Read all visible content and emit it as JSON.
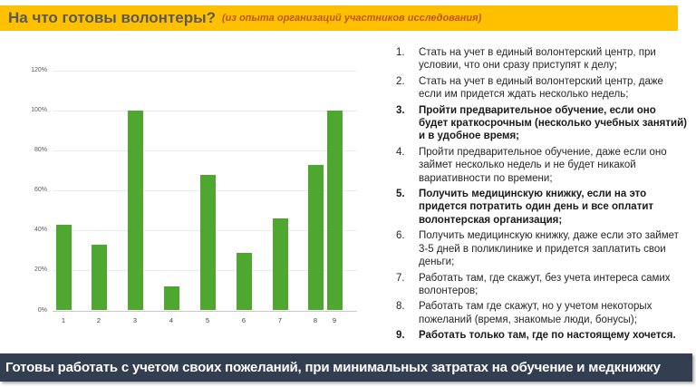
{
  "header": {
    "title": "На что готовы волонтеры?",
    "subtitle": "(из опыта организаций участников исследования)"
  },
  "chart_data": {
    "type": "bar",
    "title": "",
    "xlabel": "",
    "ylabel": "",
    "categories": [
      "1",
      "2",
      "3",
      "4",
      "5",
      "6",
      "7",
      "8",
      "9"
    ],
    "values": [
      43,
      33,
      100,
      12,
      68,
      29,
      46,
      73,
      100
    ],
    "ylim": [
      0,
      120
    ],
    "ytick_step": 20,
    "ytick_labels": [
      "0%",
      "20%",
      "40%",
      "60%",
      "80%",
      "100%",
      "120%"
    ],
    "grid": true,
    "legend": false,
    "bar_color": "#4EA72E"
  },
  "list": {
    "items": [
      {
        "num": "1.",
        "text": "Стать на учет в единый волонтерский центр, при условии, что они сразу приступят к делу;",
        "bold": false
      },
      {
        "num": "2.",
        "text": "Стать на учет в единый волонтерский центр, даже если им придется ждать несколько недель;",
        "bold": false
      },
      {
        "num": "3.",
        "text": "Пройти предварительное обучение, если оно будет краткосрочным (несколько учебных занятий) и в удобное время;",
        "bold": true
      },
      {
        "num": "4.",
        "text": "Пройти предварительное обучение, даже если оно займет несколько недель и не будет никакой вариативности по времени;",
        "bold": false
      },
      {
        "num": "5.",
        "text": "Получить медицинскую книжку, если на это придется потратить один день и все оплатит волонтерская организация;",
        "bold": true
      },
      {
        "num": "6.",
        "text": "Получить медицинскую книжку, даже если это займет 3-5 дней в поликлинике и придется заплатить свои деньги;",
        "bold": false
      },
      {
        "num": "7.",
        "text": "Работать там, где скажут, без учета интереса самих волонтеров;",
        "bold": false
      },
      {
        "num": "8.",
        "text": "Работать там где скажут, но у учетом некоторых пожеланий (время, знакомые люди, бонусы);",
        "bold": false
      },
      {
        "num": "9.",
        "text": "Работать только там, где по настоящему хочется.",
        "bold": true
      }
    ]
  },
  "footer": {
    "text": "Готовы работать с учетом своих пожеланий, при минимальных затратах на обучение и медкнижку"
  },
  "colors": {
    "header_bg": "#FFC000",
    "title": "#595959",
    "subtitle": "#C05316",
    "footer_bg": "#333F50",
    "bar": "#4EA72E",
    "gridline": "#EBEBEB"
  }
}
